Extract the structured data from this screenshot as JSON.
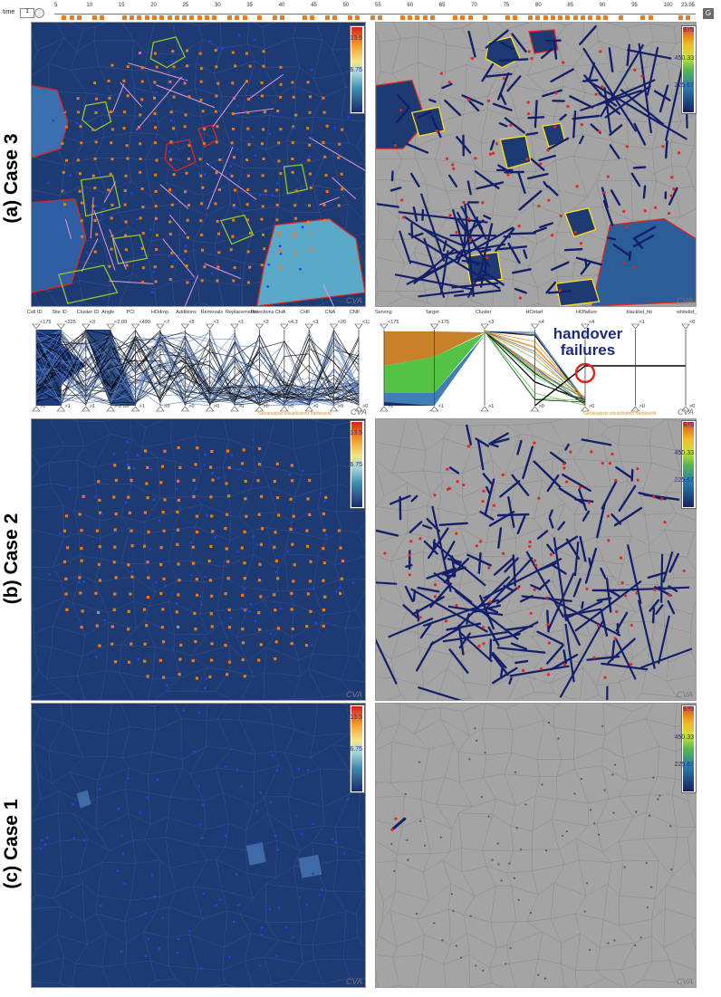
{
  "timeline": {
    "label": "time",
    "value": "1",
    "ticks": [
      "5",
      "10",
      "15",
      "20",
      "25",
      "30",
      "35",
      "40",
      "45",
      "50",
      "55",
      "60",
      "65",
      "70",
      "75",
      "80",
      "85",
      "90",
      "95",
      "100"
    ],
    "marker": "0.907",
    "end": "23.95",
    "button": "G"
  },
  "cases": [
    {
      "id": "case3",
      "label": "(a) Case 3",
      "map_cva": "CVA",
      "graph_cva": "CVA"
    },
    {
      "id": "case2",
      "label": "(b) Case 2",
      "map_cva": "CVA",
      "graph_cva": "CVA"
    },
    {
      "id": "case1",
      "label": "(c) Case 1",
      "map_cva": "CVA",
      "graph_cva": "CVA"
    }
  ],
  "legend_left": {
    "top": "13.5",
    "mid": "6.75",
    "bottom": "0"
  },
  "legend_right": {
    "top": "675",
    "upper": "450.33",
    "lower": "225.67",
    "bottom": "1"
  },
  "parallel_left": {
    "axes": [
      {
        "name": "Cell ID",
        "top": "<175",
        "bottom": ">1"
      },
      {
        "name": "Site ID",
        "top": "<225",
        "bottom": ">1"
      },
      {
        "name": "Cluster ID",
        "top": "<3",
        "bottom": ">1"
      },
      {
        "name": "Angle",
        "top": "<2.09",
        "bottom": ">-2.09"
      },
      {
        "name": "PCI",
        "top": "<499",
        "bottom": ">1"
      },
      {
        "name": "HOdrop",
        "top": "<7",
        "bottom": ">0"
      },
      {
        "name": "Additions",
        "top": "<5",
        "bottom": ">0"
      },
      {
        "name": "Removals",
        "top": "<1",
        "bottom": ">0"
      },
      {
        "name": "Replacements",
        "top": "<1",
        "bottom": ">0"
      },
      {
        "name": "Detections",
        "top": "<3",
        "bottom": ">0"
      },
      {
        "name": "CHA",
        "top": "<4.3",
        "bottom": ">0"
      },
      {
        "name": "CHF",
        "top": "<3",
        "bottom": ">0"
      },
      {
        "name": "CNA",
        "top": "<20",
        "bottom": ">0"
      },
      {
        "name": "CNF",
        "top": "<13",
        "bottom": ">0"
      }
    ],
    "credit": "Geoanalysis visualization framework",
    "cva": "CVA"
  },
  "parallel_right": {
    "axes": [
      {
        "name": "Serving",
        "top": "<175",
        "bottom": ">1"
      },
      {
        "name": "Target",
        "top": "<175",
        "bottom": ">1"
      },
      {
        "name": "Cluster",
        "top": "<3",
        "bottom": ">1"
      },
      {
        "name": "HOstart",
        "top": "<4",
        "bottom": ">0"
      },
      {
        "name": "HOfailure",
        "top": "<4",
        "bottom": ">0"
      },
      {
        "name": "blacklist_hit",
        "top": "<1",
        "bottom": ">0"
      },
      {
        "name": "whitelist_miss",
        "top": "<0",
        "bottom": ">0"
      }
    ],
    "credit": "Geoanalysis visualization framework",
    "cva": "CVA",
    "annotation": "handover\nfailures"
  },
  "colors": {
    "map_bg": "#1d3a73",
    "graph_bg": "#a4a4a4",
    "edge": "#141f6b",
    "red_dot": "#e0261f",
    "orange_dot": "#f07b16",
    "blue_dot": "#1e46e6"
  },
  "icons": [
    "time-spinner-icon",
    "gear-icon",
    "cluster-icon"
  ]
}
